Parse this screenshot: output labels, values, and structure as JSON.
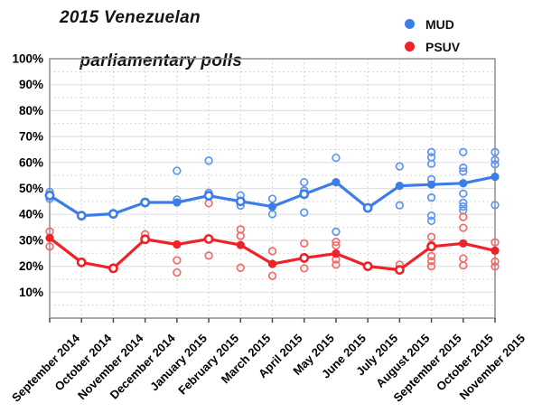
{
  "title_lines": [
    "2015 Venezuelan",
    "parliamentary polls"
  ],
  "legend": [
    {
      "label": "MUD",
      "color": "#3d7de8"
    },
    {
      "label": "PSUV",
      "color": "#ee2227"
    }
  ],
  "colors": {
    "mud": "#3d7de8",
    "mud_scatter": "#5f95ee",
    "psuv": "#ee2227",
    "psuv_scatter": "#f26b6b",
    "grid_major": "#e2e2e2",
    "grid_minor": "#c8c8c8",
    "border": "#8f8f8f",
    "tick": "#4a4a4a",
    "text": "#000000"
  },
  "chart_data": {
    "type": "line",
    "title": "2015 Venezuelan parliamentary polls",
    "categories": [
      "September 2014",
      "October 2014",
      "November 2014",
      "December 2014",
      "January 2015",
      "February 2015",
      "March 2015",
      "April 2015",
      "May 2015",
      "June 2015",
      "July 2015",
      "August 2015",
      "September 2015",
      "October 2015",
      "November 2015"
    ],
    "ylim": [
      0,
      100
    ],
    "grid": true,
    "legend_position": "top-right",
    "y_ticks": [
      {
        "value": 100,
        "label": "100%"
      },
      {
        "value": 90,
        "label": "90%"
      },
      {
        "value": 80,
        "label": "80%"
      },
      {
        "value": 70,
        "label": "70%"
      },
      {
        "value": 60,
        "label": "60%"
      },
      {
        "value": 50,
        "label": "50%"
      },
      {
        "value": 40,
        "label": "40%"
      },
      {
        "value": 30,
        "label": "30%"
      },
      {
        "value": 20,
        "label": "20%"
      },
      {
        "value": 10,
        "label": "10%"
      }
    ],
    "series": [
      {
        "name": "MUD trend",
        "color_key": "mud",
        "values": [
          47.3,
          39.5,
          40.2,
          44.6,
          44.6,
          47.2,
          45.0,
          43.0,
          47.8,
          52.4,
          42.5,
          51.0,
          51.5,
          52.0,
          54.5
        ],
        "filled": [
          false,
          false,
          false,
          false,
          true,
          false,
          false,
          true,
          false,
          true,
          false,
          true,
          true,
          true,
          true
        ]
      },
      {
        "name": "PSUV trend",
        "color_key": "psuv",
        "values": [
          30.9,
          21.5,
          19.2,
          30.4,
          28.4,
          30.5,
          28.2,
          20.9,
          23.2,
          24.9,
          20.0,
          18.6,
          27.6,
          28.8,
          26.0
        ],
        "filled": [
          true,
          false,
          false,
          false,
          true,
          false,
          true,
          true,
          false,
          true,
          false,
          false,
          false,
          true,
          true
        ]
      }
    ],
    "scatter": [
      {
        "name": "MUD polls",
        "color_key": "mud_scatter",
        "points": [
          [
            0,
            48.7
          ],
          [
            0,
            46.0
          ],
          [
            4,
            56.8
          ],
          [
            4,
            45.7
          ],
          [
            5,
            60.7
          ],
          [
            5,
            48.3
          ],
          [
            6,
            47.3
          ],
          [
            6,
            43.4
          ],
          [
            7,
            46.0
          ],
          [
            7,
            40.1
          ],
          [
            8,
            52.4
          ],
          [
            8,
            49.2
          ],
          [
            8,
            40.7
          ],
          [
            9,
            61.8
          ],
          [
            9,
            33.3
          ],
          [
            11,
            58.5
          ],
          [
            11,
            43.5
          ],
          [
            12,
            64.0
          ],
          [
            12,
            62.0
          ],
          [
            12,
            59.5
          ],
          [
            12,
            53.5
          ],
          [
            12,
            46.5
          ],
          [
            12,
            39.5
          ],
          [
            12,
            37.5
          ],
          [
            13,
            64.0
          ],
          [
            13,
            58.0
          ],
          [
            13,
            56.5
          ],
          [
            13,
            48.0
          ],
          [
            13,
            44.5
          ],
          [
            13,
            43.0
          ],
          [
            13,
            41.5
          ],
          [
            14,
            64.0
          ],
          [
            14,
            61.0
          ],
          [
            14,
            59.3
          ],
          [
            14,
            43.6
          ]
        ]
      },
      {
        "name": "PSUV polls",
        "color_key": "psuv_scatter",
        "points": [
          [
            0,
            33.4
          ],
          [
            0,
            27.6
          ],
          [
            3,
            32.3
          ],
          [
            4,
            22.3
          ],
          [
            4,
            17.6
          ],
          [
            5,
            44.3
          ],
          [
            5,
            24.1
          ],
          [
            6,
            34.2
          ],
          [
            6,
            31.7
          ],
          [
            6,
            19.4
          ],
          [
            7,
            25.8
          ],
          [
            7,
            16.3
          ],
          [
            8,
            28.8
          ],
          [
            8,
            19.2
          ],
          [
            9,
            29.4
          ],
          [
            9,
            28.0
          ],
          [
            9,
            22.6
          ],
          [
            9,
            20.6
          ],
          [
            11,
            20.6
          ],
          [
            12,
            31.3
          ],
          [
            12,
            28.2
          ],
          [
            12,
            23.9
          ],
          [
            12,
            22.0
          ],
          [
            12,
            20.0
          ],
          [
            13,
            39.0
          ],
          [
            13,
            34.8
          ],
          [
            13,
            23.0
          ],
          [
            13,
            20.3
          ],
          [
            14,
            29.2
          ],
          [
            14,
            21.8
          ],
          [
            14,
            19.9
          ]
        ]
      }
    ]
  }
}
